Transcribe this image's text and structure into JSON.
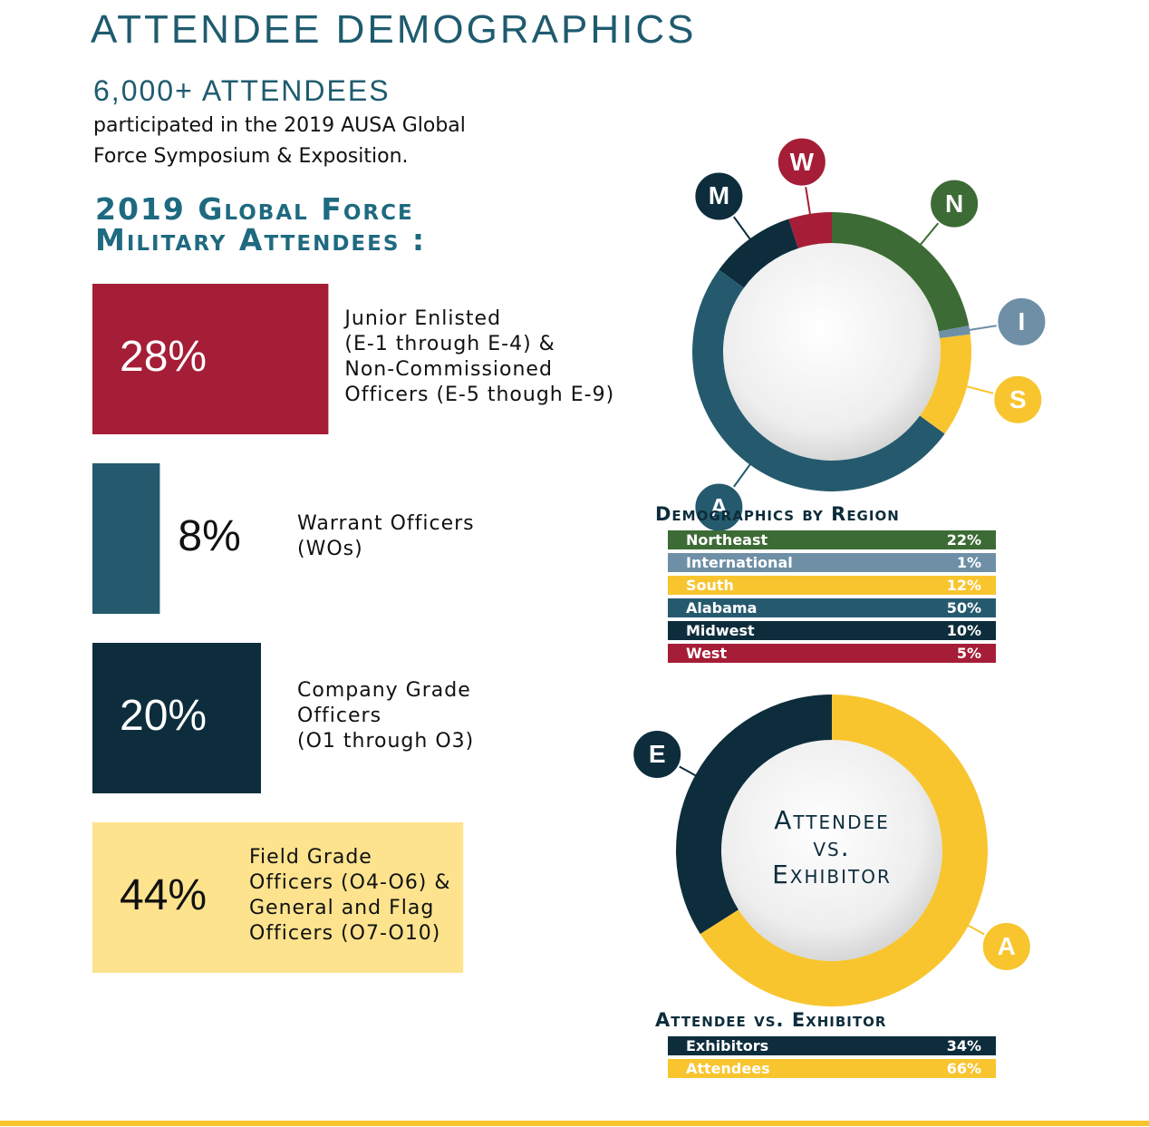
{
  "header": {
    "title": "ATTENDEE DEMOGRAPHICS",
    "headline": "6,000+ ATTENDEES",
    "text": "participated in the 2019 AUSA Global\nForce Symposium & Exposition."
  },
  "chart_data": [
    {
      "type": "bar",
      "title": "2019 Global Force\nMilitary Attendees :",
      "categories": [
        "Junior Enlisted\n(E-1 through E-4) &\nNon-Commissioned\nOfficers (E-5 though E-9)",
        "Warrant Officers\n(WOs)",
        "Company Grade\nOfficers\n(O1 through O3)",
        "Field Grade\nOfficers (O4-O6) &\nGeneral and Flag\nOfficers (O7-O10)"
      ],
      "values": [
        28,
        8,
        20,
        44
      ],
      "value_labels": [
        "28%",
        "8%",
        "20%",
        "44%"
      ],
      "colors": [
        "#a51d36",
        "#255a6e",
        "#0d2d3c",
        "#fde38e"
      ]
    },
    {
      "type": "donut",
      "title": "Demographics by Region",
      "categories": [
        "Northeast",
        "International",
        "South",
        "Alabama",
        "Midwest",
        "West"
      ],
      "markers": [
        "N",
        "I",
        "S",
        "A",
        "M",
        "W"
      ],
      "values": [
        22,
        1,
        12,
        50,
        10,
        5
      ],
      "value_labels": [
        "22%",
        "1%",
        "12%",
        "50%",
        "10%",
        "5%"
      ],
      "colors": [
        "#3d6b35",
        "#6e8fa6",
        "#f8c52f",
        "#255a6e",
        "#0d2d3c",
        "#a51d36"
      ]
    },
    {
      "type": "donut",
      "title": "Attendee vs. Exhibitor",
      "center_text": "Attendee\nvs.\nExhibitor",
      "categories": [
        "Exhibitors",
        "Attendees"
      ],
      "markers": [
        "E",
        "A"
      ],
      "values": [
        34,
        66
      ],
      "value_labels": [
        "34%",
        "66%"
      ],
      "colors": [
        "#0d2d3c",
        "#f8c52f"
      ]
    }
  ]
}
